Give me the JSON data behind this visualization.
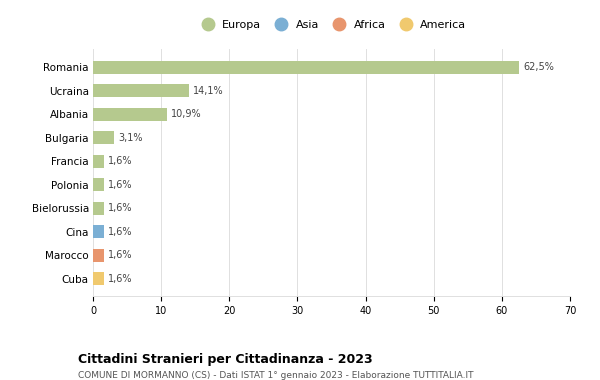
{
  "countries": [
    "Romania",
    "Ucraina",
    "Albania",
    "Bulgaria",
    "Francia",
    "Polonia",
    "Bielorussia",
    "Cina",
    "Marocco",
    "Cuba"
  ],
  "values": [
    62.5,
    14.1,
    10.9,
    3.1,
    1.6,
    1.6,
    1.6,
    1.6,
    1.6,
    1.6
  ],
  "labels": [
    "62,5%",
    "14,1%",
    "10,9%",
    "3,1%",
    "1,6%",
    "1,6%",
    "1,6%",
    "1,6%",
    "1,6%",
    "1,6%"
  ],
  "continents": [
    "Europa",
    "Europa",
    "Europa",
    "Europa",
    "Europa",
    "Europa",
    "Europa",
    "Asia",
    "Africa",
    "America"
  ],
  "colors": {
    "Europa": "#b5c98e",
    "Asia": "#7bafd4",
    "Africa": "#e8956d",
    "America": "#f0c96e"
  },
  "legend_order": [
    "Europa",
    "Asia",
    "Africa",
    "America"
  ],
  "xlim": [
    0,
    70
  ],
  "xticks": [
    0,
    10,
    20,
    30,
    40,
    50,
    60,
    70
  ],
  "title": "Cittadini Stranieri per Cittadinanza - 2023",
  "subtitle": "COMUNE DI MORMANNO (CS) - Dati ISTAT 1° gennaio 2023 - Elaborazione TUTTITALIA.IT",
  "bg_color": "#ffffff",
  "grid_color": "#e0e0e0"
}
